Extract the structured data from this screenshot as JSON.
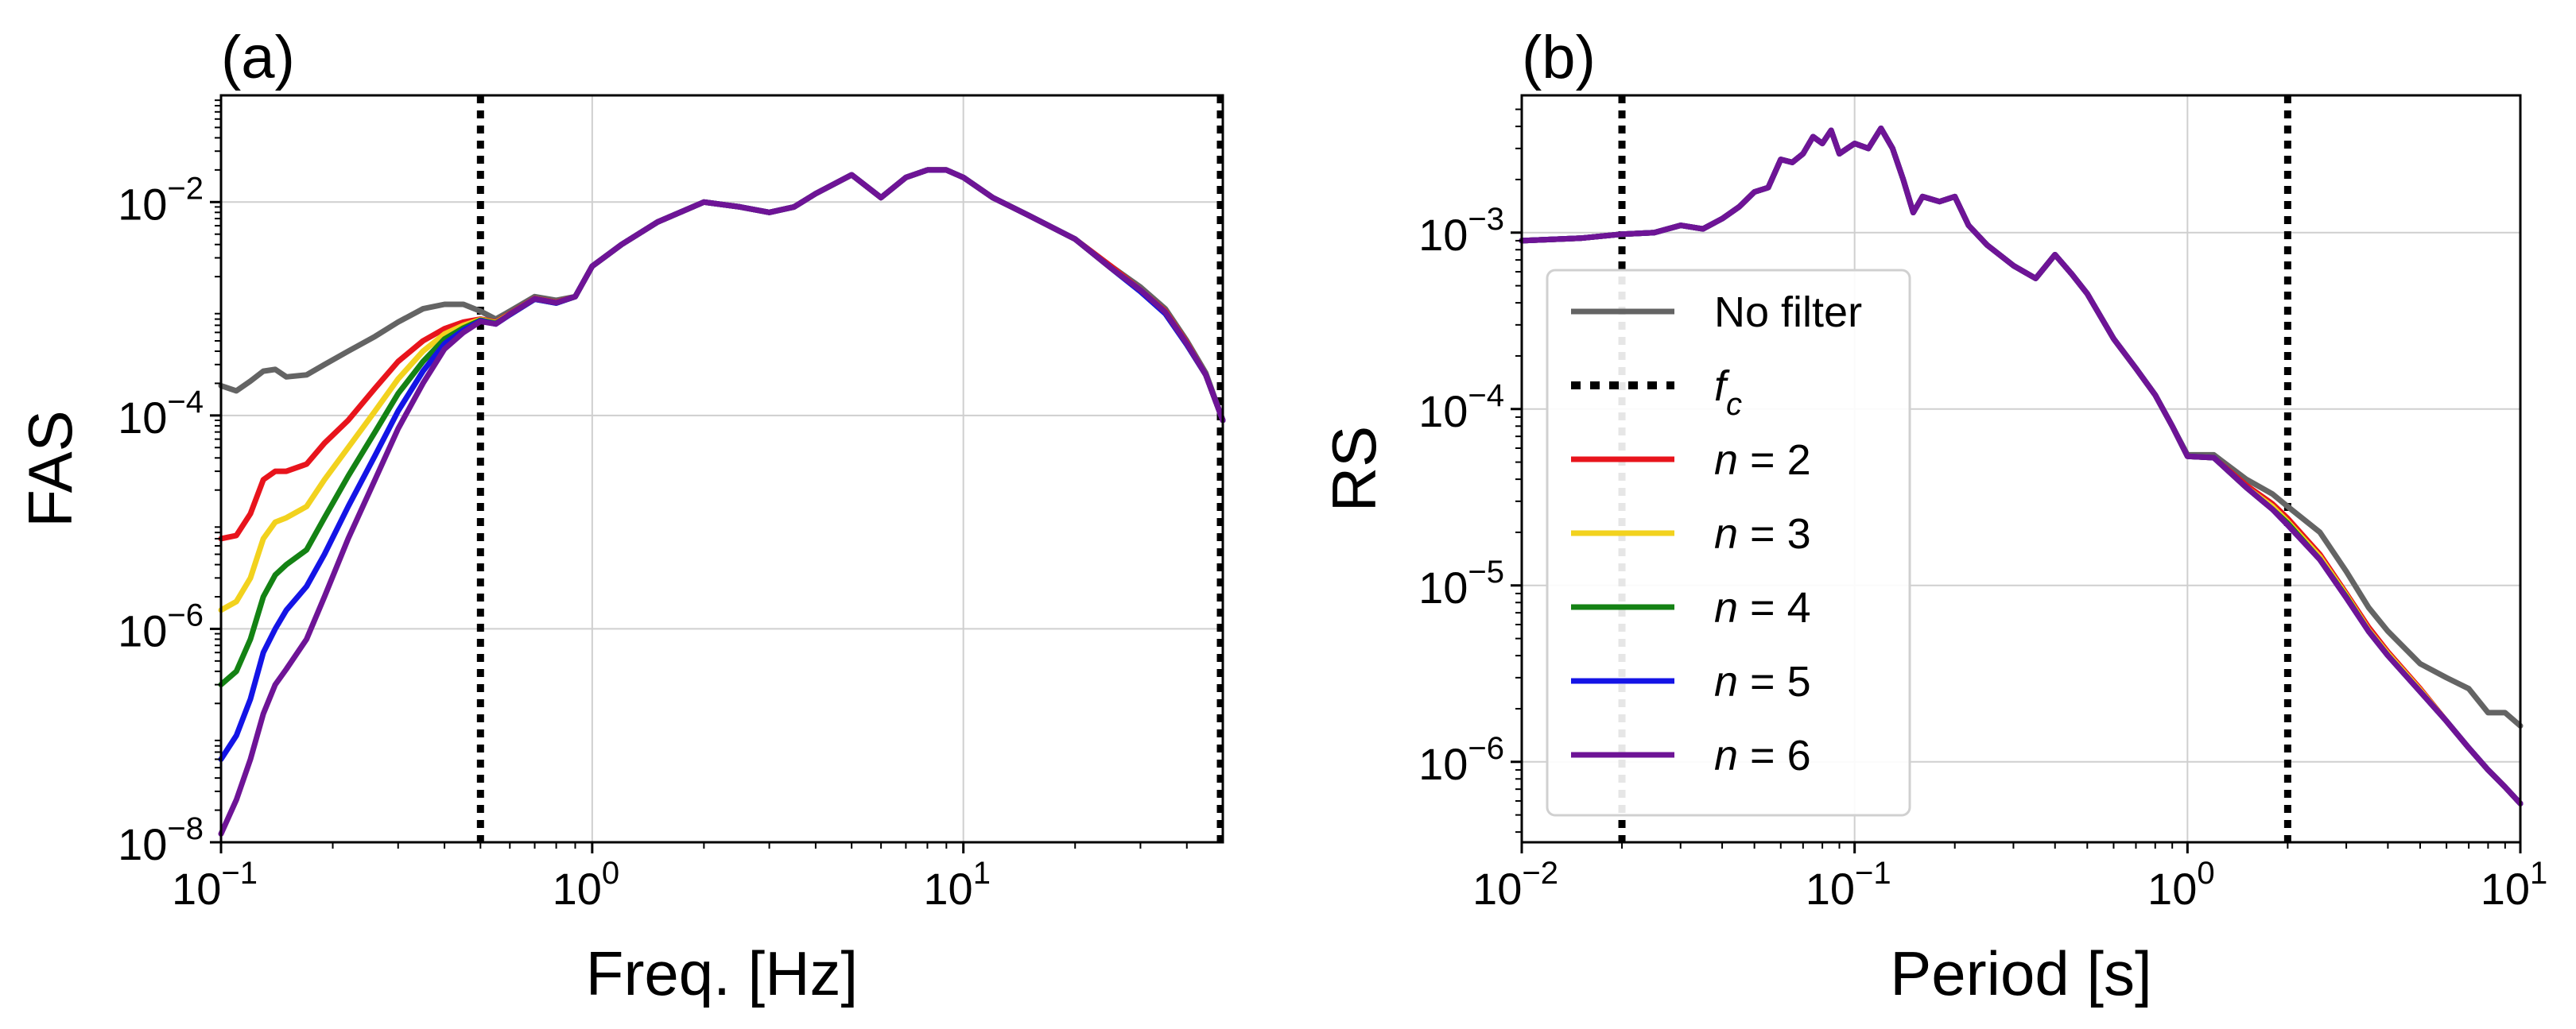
{
  "chart_data": [
    {
      "type": "line",
      "panel_label": "(a)",
      "xlabel": "Freq. [Hz]",
      "ylabel": "FAS",
      "xscale": "log",
      "yscale": "log",
      "xlim": [
        0.1,
        50
      ],
      "ylim": [
        1e-08,
        0.1
      ],
      "grid": true,
      "xticks": [
        {
          "base": "10",
          "exp": "−1",
          "value": 0.1
        },
        {
          "base": "10",
          "exp": "0",
          "value": 1
        },
        {
          "base": "10",
          "exp": "1",
          "value": 10
        }
      ],
      "yticks": [
        {
          "base": "10",
          "exp": "−8",
          "value": 1e-08
        },
        {
          "base": "10",
          "exp": "−6",
          "value": 1e-06
        },
        {
          "base": "10",
          "exp": "−4",
          "value": 0.0001
        },
        {
          "base": "10",
          "exp": "−2",
          "value": 0.01
        }
      ],
      "vlines": [
        0.5,
        50
      ],
      "x": [
        0.1,
        0.11,
        0.12,
        0.13,
        0.14,
        0.15,
        0.17,
        0.19,
        0.22,
        0.26,
        0.3,
        0.35,
        0.4,
        0.45,
        0.5,
        0.55,
        0.6,
        0.7,
        0.8,
        0.9,
        1.0,
        1.2,
        1.5,
        2.0,
        2.5,
        3.0,
        3.5,
        4.0,
        5.0,
        6.0,
        7.0,
        8.0,
        9.0,
        10,
        12,
        15,
        20,
        25,
        30,
        35,
        40,
        45,
        50
      ],
      "series": [
        {
          "name": "No filter",
          "color": "#646464",
          "values": [
            0.00019,
            0.00017,
            0.00021,
            0.00026,
            0.00027,
            0.00023,
            0.00024,
            0.0003,
            0.0004,
            0.00055,
            0.00075,
            0.001,
            0.0011,
            0.0011,
            0.00095,
            0.0008,
            0.00095,
            0.0013,
            0.0012,
            0.0013,
            0.0025,
            0.004,
            0.0065,
            0.01,
            0.009,
            0.008,
            0.009,
            0.012,
            0.018,
            0.011,
            0.017,
            0.02,
            0.02,
            0.017,
            0.011,
            0.0075,
            0.0045,
            0.0025,
            0.0016,
            0.001,
            0.0005,
            0.00025,
            9e-05
          ]
        },
        {
          "name": "n = 2",
          "color": "#e8141c",
          "values": [
            7e-06,
            7.5e-06,
            1.2e-05,
            2.5e-05,
            3e-05,
            3e-05,
            3.5e-05,
            5.5e-05,
            9e-05,
            0.00018,
            0.00032,
            0.0005,
            0.00065,
            0.00075,
            0.0008,
            0.00075,
            0.0009,
            0.00125,
            0.00115,
            0.0013,
            0.0025,
            0.004,
            0.0065,
            0.01,
            0.009,
            0.008,
            0.009,
            0.012,
            0.018,
            0.011,
            0.017,
            0.02,
            0.02,
            0.017,
            0.011,
            0.0075,
            0.0045,
            0.0025,
            0.0015,
            0.00095,
            0.00048,
            0.00024,
            9e-05
          ]
        },
        {
          "name": "n = 3",
          "color": "#f2d21e",
          "values": [
            1.5e-06,
            1.8e-06,
            3e-06,
            7e-06,
            1e-05,
            1.1e-05,
            1.4e-05,
            2.5e-05,
            5e-05,
            0.00011,
            0.00022,
            0.0004,
            0.00058,
            0.0007,
            0.00079,
            0.00074,
            0.00089,
            0.00124,
            0.00114,
            0.0013,
            0.0025,
            0.004,
            0.0065,
            0.01,
            0.009,
            0.008,
            0.009,
            0.012,
            0.018,
            0.011,
            0.017,
            0.02,
            0.02,
            0.017,
            0.011,
            0.0075,
            0.0045,
            0.0024,
            0.0015,
            0.00093,
            0.00047,
            0.00024,
            9e-05
          ]
        },
        {
          "name": "n = 4",
          "color": "#148214",
          "values": [
            3e-07,
            4e-07,
            8e-07,
            2e-06,
            3.2e-06,
            4e-06,
            5.5e-06,
            1.1e-05,
            2.7e-05,
            7e-05,
            0.00016,
            0.00032,
            0.00052,
            0.00066,
            0.00078,
            0.00073,
            0.00088,
            0.00123,
            0.00113,
            0.0013,
            0.0025,
            0.004,
            0.0065,
            0.01,
            0.009,
            0.008,
            0.009,
            0.012,
            0.018,
            0.011,
            0.017,
            0.02,
            0.02,
            0.017,
            0.011,
            0.0075,
            0.0045,
            0.0024,
            0.00145,
            0.0009,
            0.00046,
            0.00024,
            9e-05
          ]
        },
        {
          "name": "n = 5",
          "color": "#1414e6",
          "values": [
            6e-08,
            1e-07,
            2.2e-07,
            6e-07,
            1e-06,
            1.5e-06,
            2.5e-06,
            5e-06,
            1.4e-05,
            4.2e-05,
            0.00011,
            0.00026,
            0.00047,
            0.00063,
            0.00077,
            0.00072,
            0.00088,
            0.00123,
            0.00113,
            0.0013,
            0.0025,
            0.004,
            0.0065,
            0.01,
            0.009,
            0.008,
            0.009,
            0.012,
            0.018,
            0.011,
            0.017,
            0.02,
            0.02,
            0.017,
            0.011,
            0.0075,
            0.0045,
            0.0024,
            0.00145,
            0.0009,
            0.00046,
            0.00024,
            9e-05
          ]
        },
        {
          "name": "n = 6",
          "color": "#6e1496",
          "values": [
            1.2e-08,
            2.5e-08,
            6e-08,
            1.6e-07,
            3e-07,
            4.2e-07,
            8e-07,
            2e-06,
            7e-06,
            2.5e-05,
            7.5e-05,
            0.0002,
            0.00042,
            0.0006,
            0.00076,
            0.00072,
            0.00089,
            0.00124,
            0.00114,
            0.0013,
            0.0025,
            0.004,
            0.0065,
            0.01,
            0.009,
            0.008,
            0.009,
            0.012,
            0.018,
            0.011,
            0.017,
            0.02,
            0.02,
            0.017,
            0.011,
            0.0075,
            0.0045,
            0.0024,
            0.0015,
            0.00093,
            0.00047,
            0.00024,
            9e-05
          ]
        }
      ]
    },
    {
      "type": "line",
      "panel_label": "(b)",
      "xlabel": "Period [s]",
      "ylabel": "RS",
      "xscale": "log",
      "yscale": "log",
      "xlim": [
        0.01,
        10
      ],
      "ylim": [
        3.5e-07,
        0.006
      ],
      "grid": true,
      "xticks": [
        {
          "base": "10",
          "exp": "−2",
          "value": 0.01
        },
        {
          "base": "10",
          "exp": "−1",
          "value": 0.1
        },
        {
          "base": "10",
          "exp": "0",
          "value": 1
        },
        {
          "base": "10",
          "exp": "1",
          "value": 10
        }
      ],
      "yticks": [
        {
          "base": "10",
          "exp": "−6",
          "value": 1e-06
        },
        {
          "base": "10",
          "exp": "−5",
          "value": 1e-05
        },
        {
          "base": "10",
          "exp": "−4",
          "value": 0.0001
        },
        {
          "base": "10",
          "exp": "−3",
          "value": 0.001
        }
      ],
      "vlines": [
        0.02,
        2.0
      ],
      "x": [
        0.01,
        0.015,
        0.02,
        0.025,
        0.03,
        0.035,
        0.04,
        0.045,
        0.05,
        0.055,
        0.06,
        0.065,
        0.07,
        0.075,
        0.08,
        0.085,
        0.09,
        0.095,
        0.1,
        0.11,
        0.12,
        0.13,
        0.14,
        0.15,
        0.16,
        0.18,
        0.2,
        0.22,
        0.25,
        0.3,
        0.35,
        0.4,
        0.45,
        0.5,
        0.6,
        0.7,
        0.8,
        0.9,
        1.0,
        1.2,
        1.5,
        1.8,
        2.0,
        2.5,
        3.0,
        3.5,
        4.0,
        5.0,
        6.0,
        7.0,
        8.0,
        9.0,
        10
      ],
      "series": [
        {
          "name": "No filter",
          "color": "#646464",
          "values": [
            0.0009,
            0.00093,
            0.00098,
            0.001,
            0.0011,
            0.00105,
            0.0012,
            0.0014,
            0.0017,
            0.0018,
            0.0026,
            0.0025,
            0.0028,
            0.0035,
            0.0032,
            0.0038,
            0.0028,
            0.003,
            0.0032,
            0.003,
            0.0039,
            0.003,
            0.002,
            0.0013,
            0.0016,
            0.0015,
            0.0016,
            0.0011,
            0.00085,
            0.00065,
            0.00055,
            0.00075,
            0.00058,
            0.00045,
            0.00025,
            0.00017,
            0.00012,
            8e-05,
            5.5e-05,
            5.5e-05,
            4e-05,
            3.3e-05,
            2.8e-05,
            2e-05,
            1.2e-05,
            7.5e-06,
            5.5e-06,
            3.6e-06,
            3e-06,
            2.6e-06,
            1.9e-06,
            1.9e-06,
            1.6e-06
          ]
        },
        {
          "name": "n = 2",
          "color": "#e8141c",
          "values": [
            0.0009,
            0.00093,
            0.00098,
            0.001,
            0.0011,
            0.00105,
            0.0012,
            0.0014,
            0.0017,
            0.0018,
            0.0026,
            0.0025,
            0.0028,
            0.0035,
            0.0032,
            0.0038,
            0.0028,
            0.003,
            0.0032,
            0.003,
            0.0039,
            0.003,
            0.002,
            0.0013,
            0.0016,
            0.0015,
            0.0016,
            0.0011,
            0.00085,
            0.00065,
            0.00055,
            0.00075,
            0.00058,
            0.00045,
            0.00025,
            0.00017,
            0.00012,
            8e-05,
            5.4e-05,
            5.3e-05,
            3.7e-05,
            2.9e-05,
            2.4e-05,
            1.5e-05,
            9e-06,
            5.8e-06,
            4.2e-06,
            2.6e-06,
            1.7e-06,
            1.2e-06,
            9e-07,
            7.2e-07,
            5.8e-07
          ]
        },
        {
          "name": "n = 3",
          "color": "#f2d21e",
          "values": [
            0.0009,
            0.00093,
            0.00098,
            0.001,
            0.0011,
            0.00105,
            0.0012,
            0.0014,
            0.0017,
            0.0018,
            0.0026,
            0.0025,
            0.0028,
            0.0035,
            0.0032,
            0.0038,
            0.0028,
            0.003,
            0.0032,
            0.003,
            0.0039,
            0.003,
            0.002,
            0.0013,
            0.0016,
            0.0015,
            0.0016,
            0.0011,
            0.00085,
            0.00065,
            0.00055,
            0.00075,
            0.00058,
            0.00045,
            0.00025,
            0.00017,
            0.00012,
            8e-05,
            5.4e-05,
            5.3e-05,
            3.6e-05,
            2.8e-05,
            2.3e-05,
            1.45e-05,
            8.8e-06,
            5.6e-06,
            4.1e-06,
            2.55e-06,
            1.7e-06,
            1.2e-06,
            9e-07,
            7.2e-07,
            5.8e-07
          ]
        },
        {
          "name": "n = 4",
          "color": "#148214",
          "values": [
            0.0009,
            0.00093,
            0.00098,
            0.001,
            0.0011,
            0.00105,
            0.0012,
            0.0014,
            0.0017,
            0.0018,
            0.0026,
            0.0025,
            0.0028,
            0.0035,
            0.0032,
            0.0038,
            0.0028,
            0.003,
            0.0032,
            0.003,
            0.0039,
            0.003,
            0.002,
            0.0013,
            0.0016,
            0.0015,
            0.0016,
            0.0011,
            0.00085,
            0.00065,
            0.00055,
            0.00075,
            0.00058,
            0.00045,
            0.00025,
            0.00017,
            0.00012,
            8e-05,
            5.4e-05,
            5.3e-05,
            3.6e-05,
            2.7e-05,
            2.25e-05,
            1.4e-05,
            8.6e-06,
            5.5e-06,
            4e-06,
            2.5e-06,
            1.7e-06,
            1.2e-06,
            9e-07,
            7.2e-07,
            5.8e-07
          ]
        },
        {
          "name": "n = 5",
          "color": "#1414e6",
          "values": [
            0.0009,
            0.00093,
            0.00098,
            0.001,
            0.0011,
            0.00105,
            0.0012,
            0.0014,
            0.0017,
            0.0018,
            0.0026,
            0.0025,
            0.0028,
            0.0035,
            0.0032,
            0.0038,
            0.0028,
            0.003,
            0.0032,
            0.003,
            0.0039,
            0.003,
            0.002,
            0.0013,
            0.0016,
            0.0015,
            0.0016,
            0.0011,
            0.00085,
            0.00065,
            0.00055,
            0.00075,
            0.00058,
            0.00045,
            0.00025,
            0.00017,
            0.00012,
            8e-05,
            5.4e-05,
            5.3e-05,
            3.6e-05,
            2.7e-05,
            2.2e-05,
            1.4e-05,
            8.5e-06,
            5.5e-06,
            4e-06,
            2.5e-06,
            1.7e-06,
            1.2e-06,
            9e-07,
            7.2e-07,
            5.8e-07
          ]
        },
        {
          "name": "n = 6",
          "color": "#6e1496",
          "values": [
            0.0009,
            0.00093,
            0.00098,
            0.001,
            0.0011,
            0.00105,
            0.0012,
            0.0014,
            0.0017,
            0.0018,
            0.0026,
            0.0025,
            0.0028,
            0.0035,
            0.0032,
            0.0038,
            0.0028,
            0.003,
            0.0032,
            0.003,
            0.0039,
            0.003,
            0.002,
            0.0013,
            0.0016,
            0.0015,
            0.0016,
            0.0011,
            0.00085,
            0.00065,
            0.00055,
            0.00075,
            0.00058,
            0.00045,
            0.00025,
            0.00017,
            0.00012,
            8e-05,
            5.4e-05,
            5.3e-05,
            3.6e-05,
            2.7e-05,
            2.2e-05,
            1.4e-05,
            8.5e-06,
            5.5e-06,
            4e-06,
            2.5e-06,
            1.7e-06,
            1.2e-06,
            9e-07,
            7.2e-07,
            5.8e-07
          ]
        }
      ]
    }
  ],
  "legend": {
    "location": "lower-left of panel (b)",
    "entries": [
      {
        "prefix": "No filter",
        "symbol": "",
        "suffix": "",
        "color": "#646464",
        "style": "solid"
      },
      {
        "prefix": "",
        "symbol": "f",
        "subscript": "c",
        "suffix": "",
        "color": "#000000",
        "style": "dotted"
      },
      {
        "prefix": "",
        "symbol": "n",
        "suffix": " = 2",
        "color": "#e8141c",
        "style": "solid"
      },
      {
        "prefix": "",
        "symbol": "n",
        "suffix": " = 3",
        "color": "#f2d21e",
        "style": "solid"
      },
      {
        "prefix": "",
        "symbol": "n",
        "suffix": " = 4",
        "color": "#148214",
        "style": "solid"
      },
      {
        "prefix": "",
        "symbol": "n",
        "suffix": " = 5",
        "color": "#1414e6",
        "style": "solid"
      },
      {
        "prefix": "",
        "symbol": "n",
        "suffix": " = 6",
        "color": "#6e1496",
        "style": "solid"
      }
    ]
  },
  "colors": {
    "grid": "#cfcfcf",
    "axes": "#000000",
    "vline": "#000000"
  }
}
